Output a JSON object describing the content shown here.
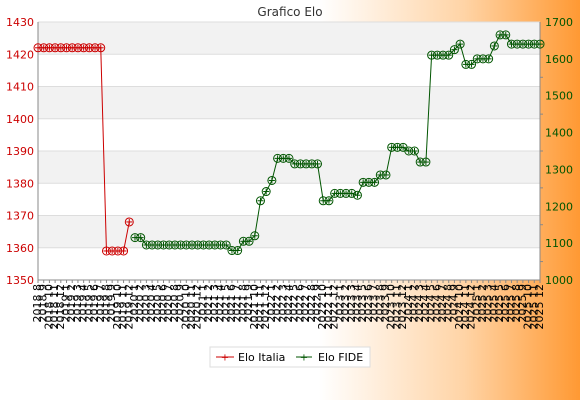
{
  "chart_data": {
    "type": "line",
    "title": "Grafico Elo",
    "x_tick_labels": [
      "2018 8",
      "2018 9",
      "2018 10",
      "2018 11",
      "2018 12",
      "2019 1",
      "2019 2",
      "2019 3",
      "2019 4",
      "2019 5",
      "2019 6",
      "2019 7",
      "2019 8",
      "2019 9",
      "2019 10",
      "2019 11",
      "2019 12",
      "2020 1",
      "2020 2",
      "2020 3",
      "2020 4",
      "2020 5",
      "2020 6",
      "2020 7",
      "2020 8",
      "2020 9",
      "2020 10",
      "2020 11",
      "2020 12",
      "2021 1",
      "2021 2",
      "2021 3",
      "2021 4",
      "2021 5",
      "2021 6",
      "2021 7",
      "2021 8",
      "2021 9",
      "2021 10",
      "2021 11",
      "2021 12",
      "2022 1",
      "2022 2",
      "2022 3",
      "2022 4",
      "2022 5",
      "2022 6",
      "2022 7",
      "2022 8",
      "2022 9",
      "2022 10",
      "2022 11",
      "2022 12",
      "2023 1",
      "2023 2",
      "2023 3",
      "2023 4",
      "2023 5",
      "2023 6",
      "2023 7",
      "2023 8",
      "2023 9",
      "2023 10",
      "2023 11",
      "2023 12",
      "2024 1",
      "2024 2",
      "2024 3",
      "2024 4",
      "2024 5",
      "2024 6",
      "2024 7",
      "2024 8",
      "2024 9",
      "2024 10",
      "2024 11",
      "2024 12",
      "2025 1",
      "2025 2",
      "2025 3",
      "2025 4",
      "2025 5",
      "2025 6",
      "2025 7",
      "2025 8",
      "2025 9",
      "2025 10",
      "2025 11",
      "2025 12"
    ],
    "y_left": {
      "lim": [
        1350,
        1430
      ],
      "ticks": [
        1350,
        1360,
        1370,
        1380,
        1390,
        1400,
        1410,
        1420,
        1430
      ]
    },
    "y_right": {
      "lim": [
        1000,
        1700
      ],
      "ticks": [
        1000,
        1100,
        1200,
        1300,
        1400,
        1500,
        1600,
        1700
      ]
    },
    "series": [
      {
        "name": "Elo Italia",
        "axis": "left",
        "color": "#cc0000",
        "x": [
          0,
          1,
          2,
          3,
          4,
          5,
          6,
          7,
          8,
          9,
          10,
          11,
          12,
          13,
          14,
          15,
          16
        ],
        "values": [
          1422,
          1422,
          1422,
          1422,
          1422,
          1422,
          1422,
          1422,
          1422,
          1422,
          1422,
          1422,
          1359,
          1359,
          1359,
          1359,
          1368
        ]
      },
      {
        "name": "Elo FIDE",
        "axis": "right",
        "color": "#005500",
        "x": [
          17,
          18,
          19,
          20,
          21,
          22,
          23,
          24,
          25,
          26,
          27,
          28,
          29,
          30,
          31,
          32,
          33,
          34,
          35,
          36,
          37,
          38,
          39,
          40,
          41,
          42,
          43,
          44,
          45,
          46,
          47,
          48,
          49,
          50,
          51,
          52,
          53,
          54,
          55,
          56,
          57,
          58,
          59,
          60,
          61,
          62,
          63,
          64,
          65,
          66,
          67,
          68,
          69,
          70,
          71,
          72,
          73,
          74,
          75,
          76,
          77,
          78,
          79,
          80,
          81,
          82,
          83,
          84,
          85,
          86,
          87,
          88
        ],
        "values": [
          1115,
          1115,
          1095,
          1095,
          1095,
          1095,
          1095,
          1095,
          1095,
          1095,
          1095,
          1095,
          1095,
          1095,
          1095,
          1095,
          1095,
          1080,
          1080,
          1105,
          1105,
          1120,
          1215,
          1240,
          1270,
          1330,
          1330,
          1330,
          1315,
          1315,
          1315,
          1315,
          1315,
          1215,
          1215,
          1235,
          1235,
          1235,
          1235,
          1230,
          1265,
          1265,
          1265,
          1285,
          1285,
          1360,
          1360,
          1360,
          1350,
          1350,
          1320,
          1320,
          1610,
          1610,
          1610,
          1610,
          1625,
          1640,
          1585,
          1585,
          1600,
          1600,
          1600,
          1635,
          1665,
          1665,
          1640,
          1640,
          1640,
          1640,
          1640,
          1640
        ]
      }
    ],
    "legend": {
      "position": "bottom-center"
    },
    "grid": true
  }
}
